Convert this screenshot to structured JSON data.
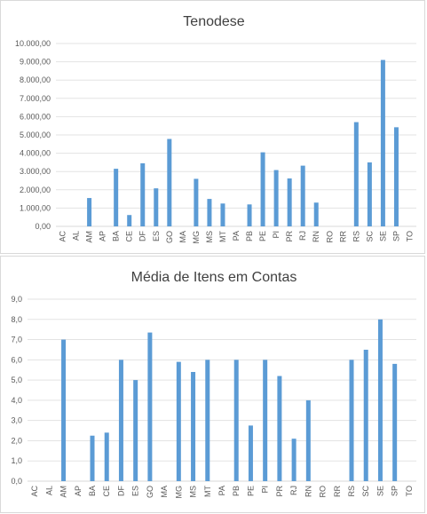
{
  "chart_data": [
    {
      "type": "bar",
      "title": "Tenodese",
      "xlabel": "",
      "ylabel": "",
      "categories": [
        "AC",
        "AL",
        "AM",
        "AP",
        "BA",
        "CE",
        "DF",
        "ES",
        "GO",
        "MA",
        "MG",
        "MS",
        "MT",
        "PA",
        "PB",
        "PE",
        "PI",
        "PR",
        "RJ",
        "RN",
        "RO",
        "RR",
        "RS",
        "SC",
        "SE",
        "SP",
        "TO"
      ],
      "values": [
        0,
        0,
        1550,
        0,
        3150,
        620,
        3450,
        2080,
        4780,
        0,
        2600,
        1500,
        1250,
        0,
        1200,
        4050,
        3080,
        2620,
        3320,
        1300,
        0,
        0,
        5700,
        3500,
        9100,
        5420,
        0
      ],
      "ylim": [
        0,
        10000
      ],
      "yticks": [
        "0,00",
        "1.000,00",
        "2.000,00",
        "3.000,00",
        "4.000,00",
        "5.000,00",
        "6.000,00",
        "7.000,00",
        "8.000,00",
        "9.000,00",
        "10.000,00"
      ],
      "grid": true,
      "bar_color": "#5b9bd5"
    },
    {
      "type": "bar",
      "title": "Média de Itens em Contas",
      "xlabel": "",
      "ylabel": "",
      "categories": [
        "AC",
        "AL",
        "AM",
        "AP",
        "BA",
        "CE",
        "DF",
        "ES",
        "GO",
        "MA",
        "MG",
        "MS",
        "MT",
        "PA",
        "PB",
        "PE",
        "PI",
        "PR",
        "RJ",
        "RN",
        "RO",
        "RR",
        "RS",
        "SC",
        "SE",
        "SP",
        "TO"
      ],
      "values": [
        0,
        0,
        7.0,
        0,
        2.25,
        2.4,
        6.0,
        5.0,
        7.35,
        0,
        5.9,
        5.4,
        6.0,
        0,
        6.0,
        2.75,
        6.0,
        5.2,
        2.1,
        4.0,
        0,
        0,
        6.0,
        6.5,
        8.0,
        5.8,
        0
      ],
      "ylim": [
        0,
        9
      ],
      "yticks": [
        "0,0",
        "1,0",
        "2,0",
        "3,0",
        "4,0",
        "5,0",
        "6,0",
        "7,0",
        "8,0",
        "9,0"
      ],
      "grid": true,
      "bar_color": "#5b9bd5"
    }
  ]
}
